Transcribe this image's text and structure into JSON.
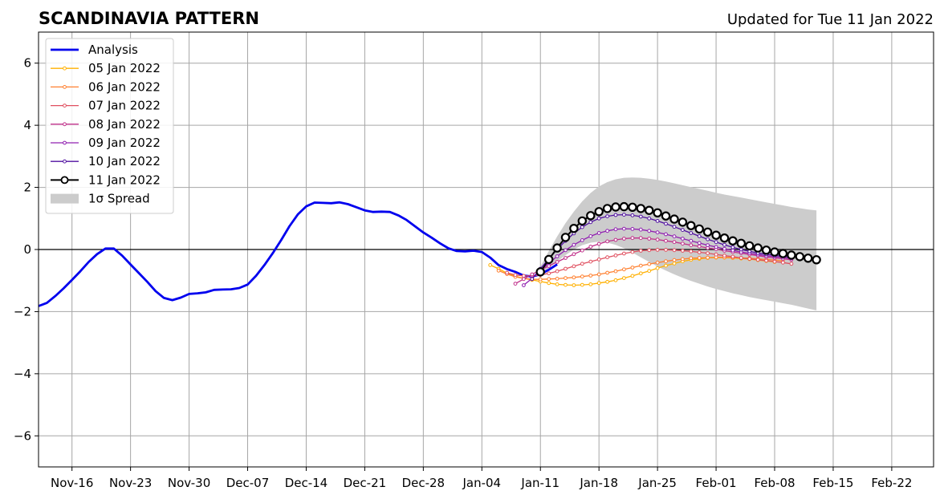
{
  "header": {
    "title": "SCANDINAVIA PATTERN",
    "updated": "Updated for Tue 11 Jan 2022"
  },
  "chart_data": {
    "type": "line",
    "title": "SCANDINAVIA PATTERN",
    "subtitle": "Updated for Tue 11 Jan 2022",
    "xlabel": "",
    "ylabel": "",
    "x_axis": {
      "type": "date",
      "range": [
        "2021-11-12",
        "2022-02-27"
      ],
      "ticks": [
        "2021-11-16",
        "2021-11-23",
        "2021-11-30",
        "2021-12-07",
        "2021-12-14",
        "2021-12-21",
        "2021-12-28",
        "2022-01-04",
        "2022-01-11",
        "2022-01-18",
        "2022-01-25",
        "2022-02-01",
        "2022-02-08",
        "2022-02-15",
        "2022-02-22"
      ],
      "tick_labels": [
        "Nov-16",
        "Nov-23",
        "Nov-30",
        "Dec-07",
        "Dec-14",
        "Dec-21",
        "Dec-28",
        "Jan-04",
        "Jan-11",
        "Jan-18",
        "Jan-25",
        "Feb-01",
        "Feb-08",
        "Feb-15",
        "Feb-22"
      ]
    },
    "ylim": [
      -7,
      7
    ],
    "y_ticks": [
      -6,
      -4,
      -2,
      0,
      2,
      4,
      6
    ],
    "y_tick_labels": [
      "−6",
      "−4",
      "−2",
      "0",
      "2",
      "4",
      "6"
    ],
    "grid": true,
    "zero_line": true,
    "legend_position": "top-left",
    "legend": [
      "Analysis",
      "05 Jan 2022",
      "06 Jan 2022",
      "07 Jan 2022",
      "08 Jan 2022",
      "09 Jan 2022",
      "10 Jan 2022",
      "11 Jan 2022",
      "1σ Spread"
    ],
    "analysis": {
      "name": "Analysis",
      "color": "#0000ee",
      "start_date": "2021-11-12",
      "values": [
        -1.82,
        -1.72,
        -1.5,
        -1.25,
        -0.98,
        -0.7,
        -0.4,
        -0.15,
        0.03,
        0.03,
        -0.2,
        -0.48,
        -0.76,
        -1.04,
        -1.34,
        -1.56,
        -1.63,
        -1.55,
        -1.43,
        -1.41,
        -1.38,
        -1.3,
        -1.29,
        -1.28,
        -1.24,
        -1.13,
        -0.85,
        -0.5,
        -0.12,
        0.3,
        0.75,
        1.13,
        1.39,
        1.51,
        1.5,
        1.49,
        1.52,
        1.46,
        1.36,
        1.26,
        1.21,
        1.22,
        1.21,
        1.1,
        0.95,
        0.75,
        0.55,
        0.38,
        0.2,
        0.04,
        -0.05,
        -0.06,
        -0.04,
        -0.08,
        -0.26,
        -0.5,
        -0.63,
        -0.72,
        -0.84,
        -0.87,
        -0.8,
        -0.65,
        -0.48
      ]
    },
    "forecasts": [
      {
        "name": "05 Jan 2022",
        "color": "#ffb000",
        "start_date": "2022-01-05",
        "values": [
          -0.5,
          -0.62,
          -0.76,
          -0.86,
          -0.93,
          -0.98,
          -1.03,
          -1.08,
          -1.12,
          -1.14,
          -1.15,
          -1.14,
          -1.12,
          -1.08,
          -1.04,
          -0.99,
          -0.92,
          -0.85,
          -0.77,
          -0.69,
          -0.6,
          -0.52,
          -0.45,
          -0.38,
          -0.33,
          -0.3,
          -0.27,
          -0.26,
          -0.26,
          -0.27,
          -0.29,
          -0.31,
          -0.34,
          -0.37,
          -0.4
        ]
      },
      {
        "name": "06 Jan 2022",
        "color": "#ff8030",
        "start_date": "2022-01-06",
        "values": [
          -0.68,
          -0.79,
          -0.88,
          -0.93,
          -0.96,
          -0.96,
          -0.95,
          -0.94,
          -0.92,
          -0.9,
          -0.87,
          -0.84,
          -0.8,
          -0.75,
          -0.7,
          -0.64,
          -0.58,
          -0.52,
          -0.47,
          -0.42,
          -0.38,
          -0.34,
          -0.31,
          -0.28,
          -0.27,
          -0.26,
          -0.25,
          -0.25,
          -0.26,
          -0.27,
          -0.28,
          -0.3,
          -0.32,
          -0.34,
          -0.37
        ]
      },
      {
        "name": "07 Jan 2022",
        "color": "#e05060",
        "start_date": "2022-01-07",
        "values": [
          -0.75,
          -0.82,
          -0.85,
          -0.85,
          -0.82,
          -0.77,
          -0.7,
          -0.62,
          -0.54,
          -0.46,
          -0.39,
          -0.32,
          -0.25,
          -0.19,
          -0.13,
          -0.08,
          -0.04,
          -0.02,
          -0.01,
          -0.01,
          -0.02,
          -0.04,
          -0.06,
          -0.09,
          -0.12,
          -0.16,
          -0.2,
          -0.23,
          -0.27,
          -0.3,
          -0.33,
          -0.36,
          -0.39,
          -0.42,
          -0.46
        ]
      },
      {
        "name": "08 Jan 2022",
        "color": "#c0308a",
        "start_date": "2022-01-08",
        "values": [
          -1.1,
          -0.95,
          -0.8,
          -0.66,
          -0.53,
          -0.4,
          -0.27,
          -0.15,
          -0.03,
          0.09,
          0.18,
          0.26,
          0.31,
          0.35,
          0.37,
          0.37,
          0.35,
          0.32,
          0.28,
          0.24,
          0.19,
          0.14,
          0.1,
          0.05,
          0.01,
          -0.04,
          -0.08,
          -0.12,
          -0.16,
          -0.2,
          -0.24,
          -0.27,
          -0.3,
          -0.33
        ]
      },
      {
        "name": "09 Jan 2022",
        "color": "#9020b0",
        "start_date": "2022-01-09",
        "values": [
          -1.15,
          -0.93,
          -0.68,
          -0.44,
          -0.22,
          -0.02,
          0.15,
          0.3,
          0.43,
          0.53,
          0.6,
          0.65,
          0.67,
          0.66,
          0.64,
          0.6,
          0.55,
          0.49,
          0.42,
          0.35,
          0.28,
          0.21,
          0.14,
          0.08,
          0.02,
          -0.03,
          -0.08,
          -0.12,
          -0.16,
          -0.2,
          -0.23,
          -0.26,
          -0.29
        ]
      },
      {
        "name": "10 Jan 2022",
        "color": "#5010a0",
        "start_date": "2022-01-10",
        "values": [
          -0.95,
          -0.62,
          -0.3,
          0.0,
          0.28,
          0.52,
          0.72,
          0.88,
          1.0,
          1.07,
          1.11,
          1.12,
          1.1,
          1.06,
          1.0,
          0.92,
          0.83,
          0.73,
          0.63,
          0.53,
          0.43,
          0.33,
          0.24,
          0.15,
          0.07,
          0.0,
          -0.06,
          -0.11,
          -0.15,
          -0.19,
          -0.22,
          -0.25
        ]
      },
      {
        "name": "11 Jan 2022",
        "color": "#000000",
        "start_date": "2022-01-11",
        "values": [
          -0.72,
          -0.32,
          0.05,
          0.39,
          0.68,
          0.92,
          1.09,
          1.22,
          1.32,
          1.37,
          1.38,
          1.36,
          1.32,
          1.26,
          1.18,
          1.08,
          0.98,
          0.88,
          0.77,
          0.66,
          0.56,
          0.46,
          0.37,
          0.28,
          0.2,
          0.12,
          0.05,
          -0.02,
          -0.08,
          -0.13,
          -0.18,
          -0.23,
          -0.28,
          -0.33
        ]
      }
    ],
    "spread": {
      "name": "1σ Spread",
      "color": "#cccccc",
      "start_date": "2022-01-11",
      "upper": [
        -0.55,
        -0.05,
        0.42,
        0.85,
        1.22,
        1.55,
        1.82,
        2.03,
        2.17,
        2.26,
        2.31,
        2.32,
        2.31,
        2.28,
        2.24,
        2.19,
        2.13,
        2.07,
        2.01,
        1.95,
        1.89,
        1.83,
        1.77,
        1.72,
        1.67,
        1.62,
        1.57,
        1.52,
        1.47,
        1.42,
        1.37,
        1.33,
        1.29,
        1.26
      ],
      "lower": [
        -0.82,
        -0.6,
        -0.38,
        -0.18,
        0.0,
        0.14,
        0.22,
        0.25,
        0.22,
        0.15,
        0.04,
        -0.1,
        -0.25,
        -0.4,
        -0.55,
        -0.68,
        -0.8,
        -0.91,
        -1.01,
        -1.1,
        -1.19,
        -1.27,
        -1.34,
        -1.41,
        -1.47,
        -1.53,
        -1.58,
        -1.63,
        -1.68,
        -1.73,
        -1.78,
        -1.84,
        -1.9,
        -1.96
      ]
    }
  }
}
